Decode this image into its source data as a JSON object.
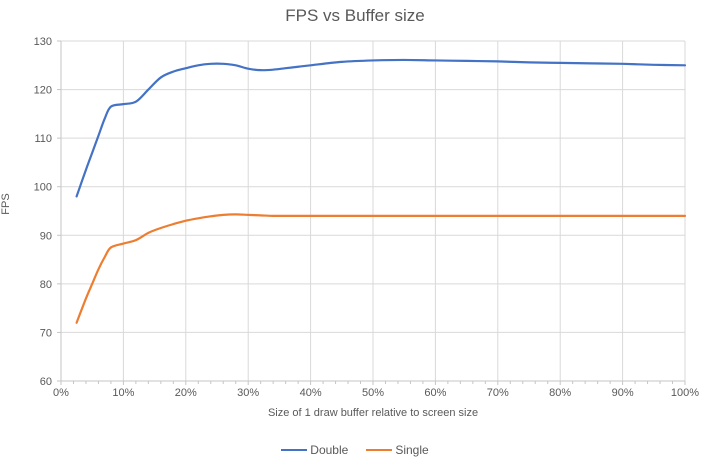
{
  "chart_data": {
    "type": "line",
    "title": "FPS vs Buffer size",
    "xlabel": "Size of 1 draw buffer relative to screen size",
    "ylabel": "FPS",
    "xlim": [
      0,
      100
    ],
    "ylim": [
      60,
      130
    ],
    "x_tick_step": 10,
    "x_minor_tick_step": 2,
    "x_tick_suffix": "%",
    "y_tick_step": 10,
    "grid": true,
    "smooth_lines": true,
    "legend_position": "bottom-center",
    "colors": {
      "gridline": "#D9D9D9",
      "axis_line": "#C6C6C6",
      "tick_text": "#595959",
      "title_text": "#595959"
    },
    "series": [
      {
        "name": "Double",
        "color": "#4472C4",
        "points": [
          [
            2.5,
            98
          ],
          [
            4,
            103.5
          ],
          [
            5,
            107
          ],
          [
            6,
            110.5
          ],
          [
            7,
            114
          ],
          [
            8,
            116.5
          ],
          [
            10,
            117
          ],
          [
            12,
            117.5
          ],
          [
            14,
            120
          ],
          [
            16,
            122.5
          ],
          [
            18,
            123.7
          ],
          [
            20,
            124.4
          ],
          [
            22,
            125
          ],
          [
            24,
            125.3
          ],
          [
            26,
            125.3
          ],
          [
            28,
            125
          ],
          [
            30,
            124.3
          ],
          [
            32,
            124
          ],
          [
            34,
            124.1
          ],
          [
            36,
            124.4
          ],
          [
            38,
            124.7
          ],
          [
            40,
            125
          ],
          [
            45,
            125.7
          ],
          [
            50,
            126
          ],
          [
            55,
            126.1
          ],
          [
            60,
            126
          ],
          [
            65,
            125.9
          ],
          [
            70,
            125.8
          ],
          [
            75,
            125.6
          ],
          [
            80,
            125.5
          ],
          [
            85,
            125.4
          ],
          [
            90,
            125.3
          ],
          [
            95,
            125.1
          ],
          [
            100,
            125
          ]
        ]
      },
      {
        "name": "Single",
        "color": "#ED7D31",
        "points": [
          [
            2.5,
            72
          ],
          [
            4,
            77
          ],
          [
            5,
            80
          ],
          [
            6,
            83
          ],
          [
            7,
            85.5
          ],
          [
            8,
            87.5
          ],
          [
            10,
            88.3
          ],
          [
            12,
            89
          ],
          [
            14,
            90.5
          ],
          [
            16,
            91.5
          ],
          [
            18,
            92.3
          ],
          [
            20,
            93
          ],
          [
            22,
            93.5
          ],
          [
            24,
            93.9
          ],
          [
            26,
            94.2
          ],
          [
            28,
            94.3
          ],
          [
            30,
            94.2
          ],
          [
            32,
            94.1
          ],
          [
            34,
            94
          ],
          [
            36,
            94
          ],
          [
            38,
            94
          ],
          [
            40,
            94
          ],
          [
            45,
            94
          ],
          [
            50,
            94
          ],
          [
            55,
            94
          ],
          [
            60,
            94
          ],
          [
            65,
            94
          ],
          [
            70,
            94
          ],
          [
            75,
            94
          ],
          [
            80,
            94
          ],
          [
            85,
            94
          ],
          [
            90,
            94
          ],
          [
            95,
            94
          ],
          [
            100,
            94
          ]
        ]
      }
    ]
  }
}
